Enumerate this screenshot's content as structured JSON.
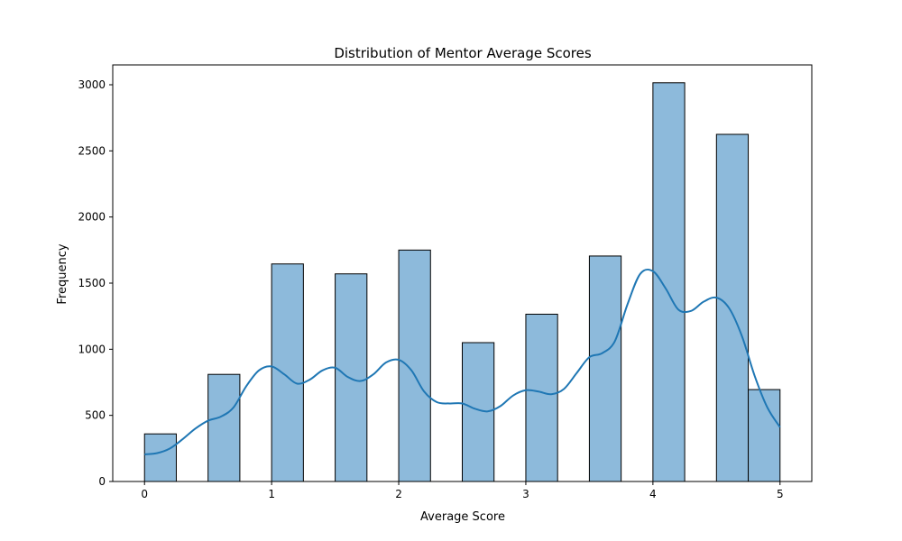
{
  "chart_data": {
    "type": "bar",
    "title": "Distribution of Mentor Average Scores",
    "xlabel": "Average Score",
    "ylabel": "Frequency",
    "xlim": [
      -0.25,
      5.25
    ],
    "ylim": [
      0,
      3150
    ],
    "x_ticks": [
      0,
      1,
      2,
      3,
      4,
      5
    ],
    "y_ticks": [
      0,
      500,
      1000,
      1500,
      2000,
      2500,
      3000
    ],
    "bin_width": 0.25,
    "bins": [
      {
        "x0": 0.0,
        "x1": 0.25,
        "count": 360
      },
      {
        "x0": 0.5,
        "x1": 0.75,
        "count": 810
      },
      {
        "x0": 1.0,
        "x1": 1.25,
        "count": 1645
      },
      {
        "x0": 1.5,
        "x1": 1.75,
        "count": 1570
      },
      {
        "x0": 2.0,
        "x1": 2.25,
        "count": 1750
      },
      {
        "x0": 2.5,
        "x1": 2.75,
        "count": 1050
      },
      {
        "x0": 3.0,
        "x1": 3.25,
        "count": 1265
      },
      {
        "x0": 3.5,
        "x1": 3.75,
        "count": 1705
      },
      {
        "x0": 4.0,
        "x1": 4.25,
        "count": 3015
      },
      {
        "x0": 4.5,
        "x1": 4.75,
        "count": 2625
      },
      {
        "x0": 4.75,
        "x1": 5.0,
        "count": 695
      }
    ],
    "kde": {
      "x": [
        0.0,
        0.1,
        0.2,
        0.3,
        0.4,
        0.5,
        0.6,
        0.7,
        0.8,
        0.9,
        1.0,
        1.1,
        1.2,
        1.3,
        1.4,
        1.5,
        1.6,
        1.7,
        1.8,
        1.9,
        2.0,
        2.1,
        2.2,
        2.3,
        2.4,
        2.5,
        2.6,
        2.7,
        2.8,
        2.9,
        3.0,
        3.1,
        3.2,
        3.3,
        3.4,
        3.5,
        3.6,
        3.7,
        3.8,
        3.9,
        4.0,
        4.1,
        4.2,
        4.3,
        4.4,
        4.5,
        4.6,
        4.7,
        4.8,
        4.9,
        5.0
      ],
      "y": [
        205,
        215,
        250,
        320,
        400,
        460,
        490,
        560,
        720,
        840,
        870,
        810,
        740,
        770,
        840,
        860,
        790,
        760,
        810,
        900,
        920,
        840,
        680,
        600,
        590,
        590,
        550,
        530,
        570,
        650,
        690,
        680,
        660,
        700,
        820,
        940,
        970,
        1060,
        1340,
        1570,
        1590,
        1460,
        1300,
        1290,
        1360,
        1390,
        1310,
        1100,
        800,
        560,
        410
      ]
    },
    "colors": {
      "bar_fill": "#8dbadb",
      "bar_edge": "#000000",
      "kde_line": "#1f77b4"
    }
  }
}
